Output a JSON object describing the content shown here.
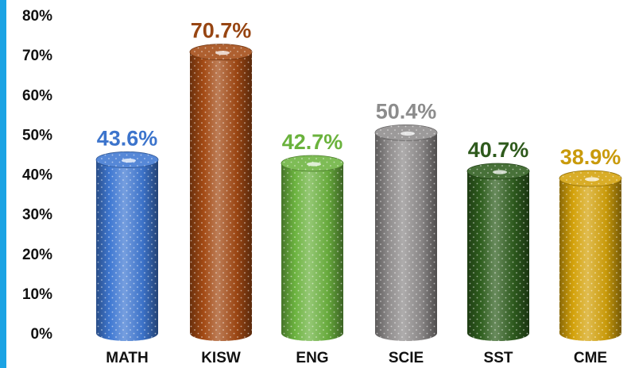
{
  "chart_data": {
    "type": "bar",
    "categories": [
      "MATH",
      "KISW",
      "ENG",
      "SCIE",
      "SST",
      "CME"
    ],
    "values": [
      43.6,
      70.7,
      42.7,
      50.4,
      40.7,
      38.9
    ],
    "value_labels": [
      "43.6%",
      "70.7%",
      "42.7%",
      "50.4%",
      "40.7%",
      "38.9%"
    ],
    "colors": [
      "#3f78d2",
      "#a34a14",
      "#6cb33f",
      "#8f8c8c",
      "#2f5e1e",
      "#d4a20a"
    ],
    "label_colors": [
      "#3c74cc",
      "#974512",
      "#6ab23c",
      "#8c8c8c",
      "#2e5a1c",
      "#c99a0b"
    ],
    "yticks": [
      "0%",
      "10%",
      "20%",
      "30%",
      "40%",
      "50%",
      "60%",
      "70%",
      "80%"
    ],
    "ylim": [
      0,
      80
    ],
    "title": "",
    "xlabel": "",
    "ylabel": "",
    "grid": false,
    "bar_style": "3d-cylinder-dotted"
  },
  "decor": {
    "accent_color": "#1ca3e4"
  }
}
